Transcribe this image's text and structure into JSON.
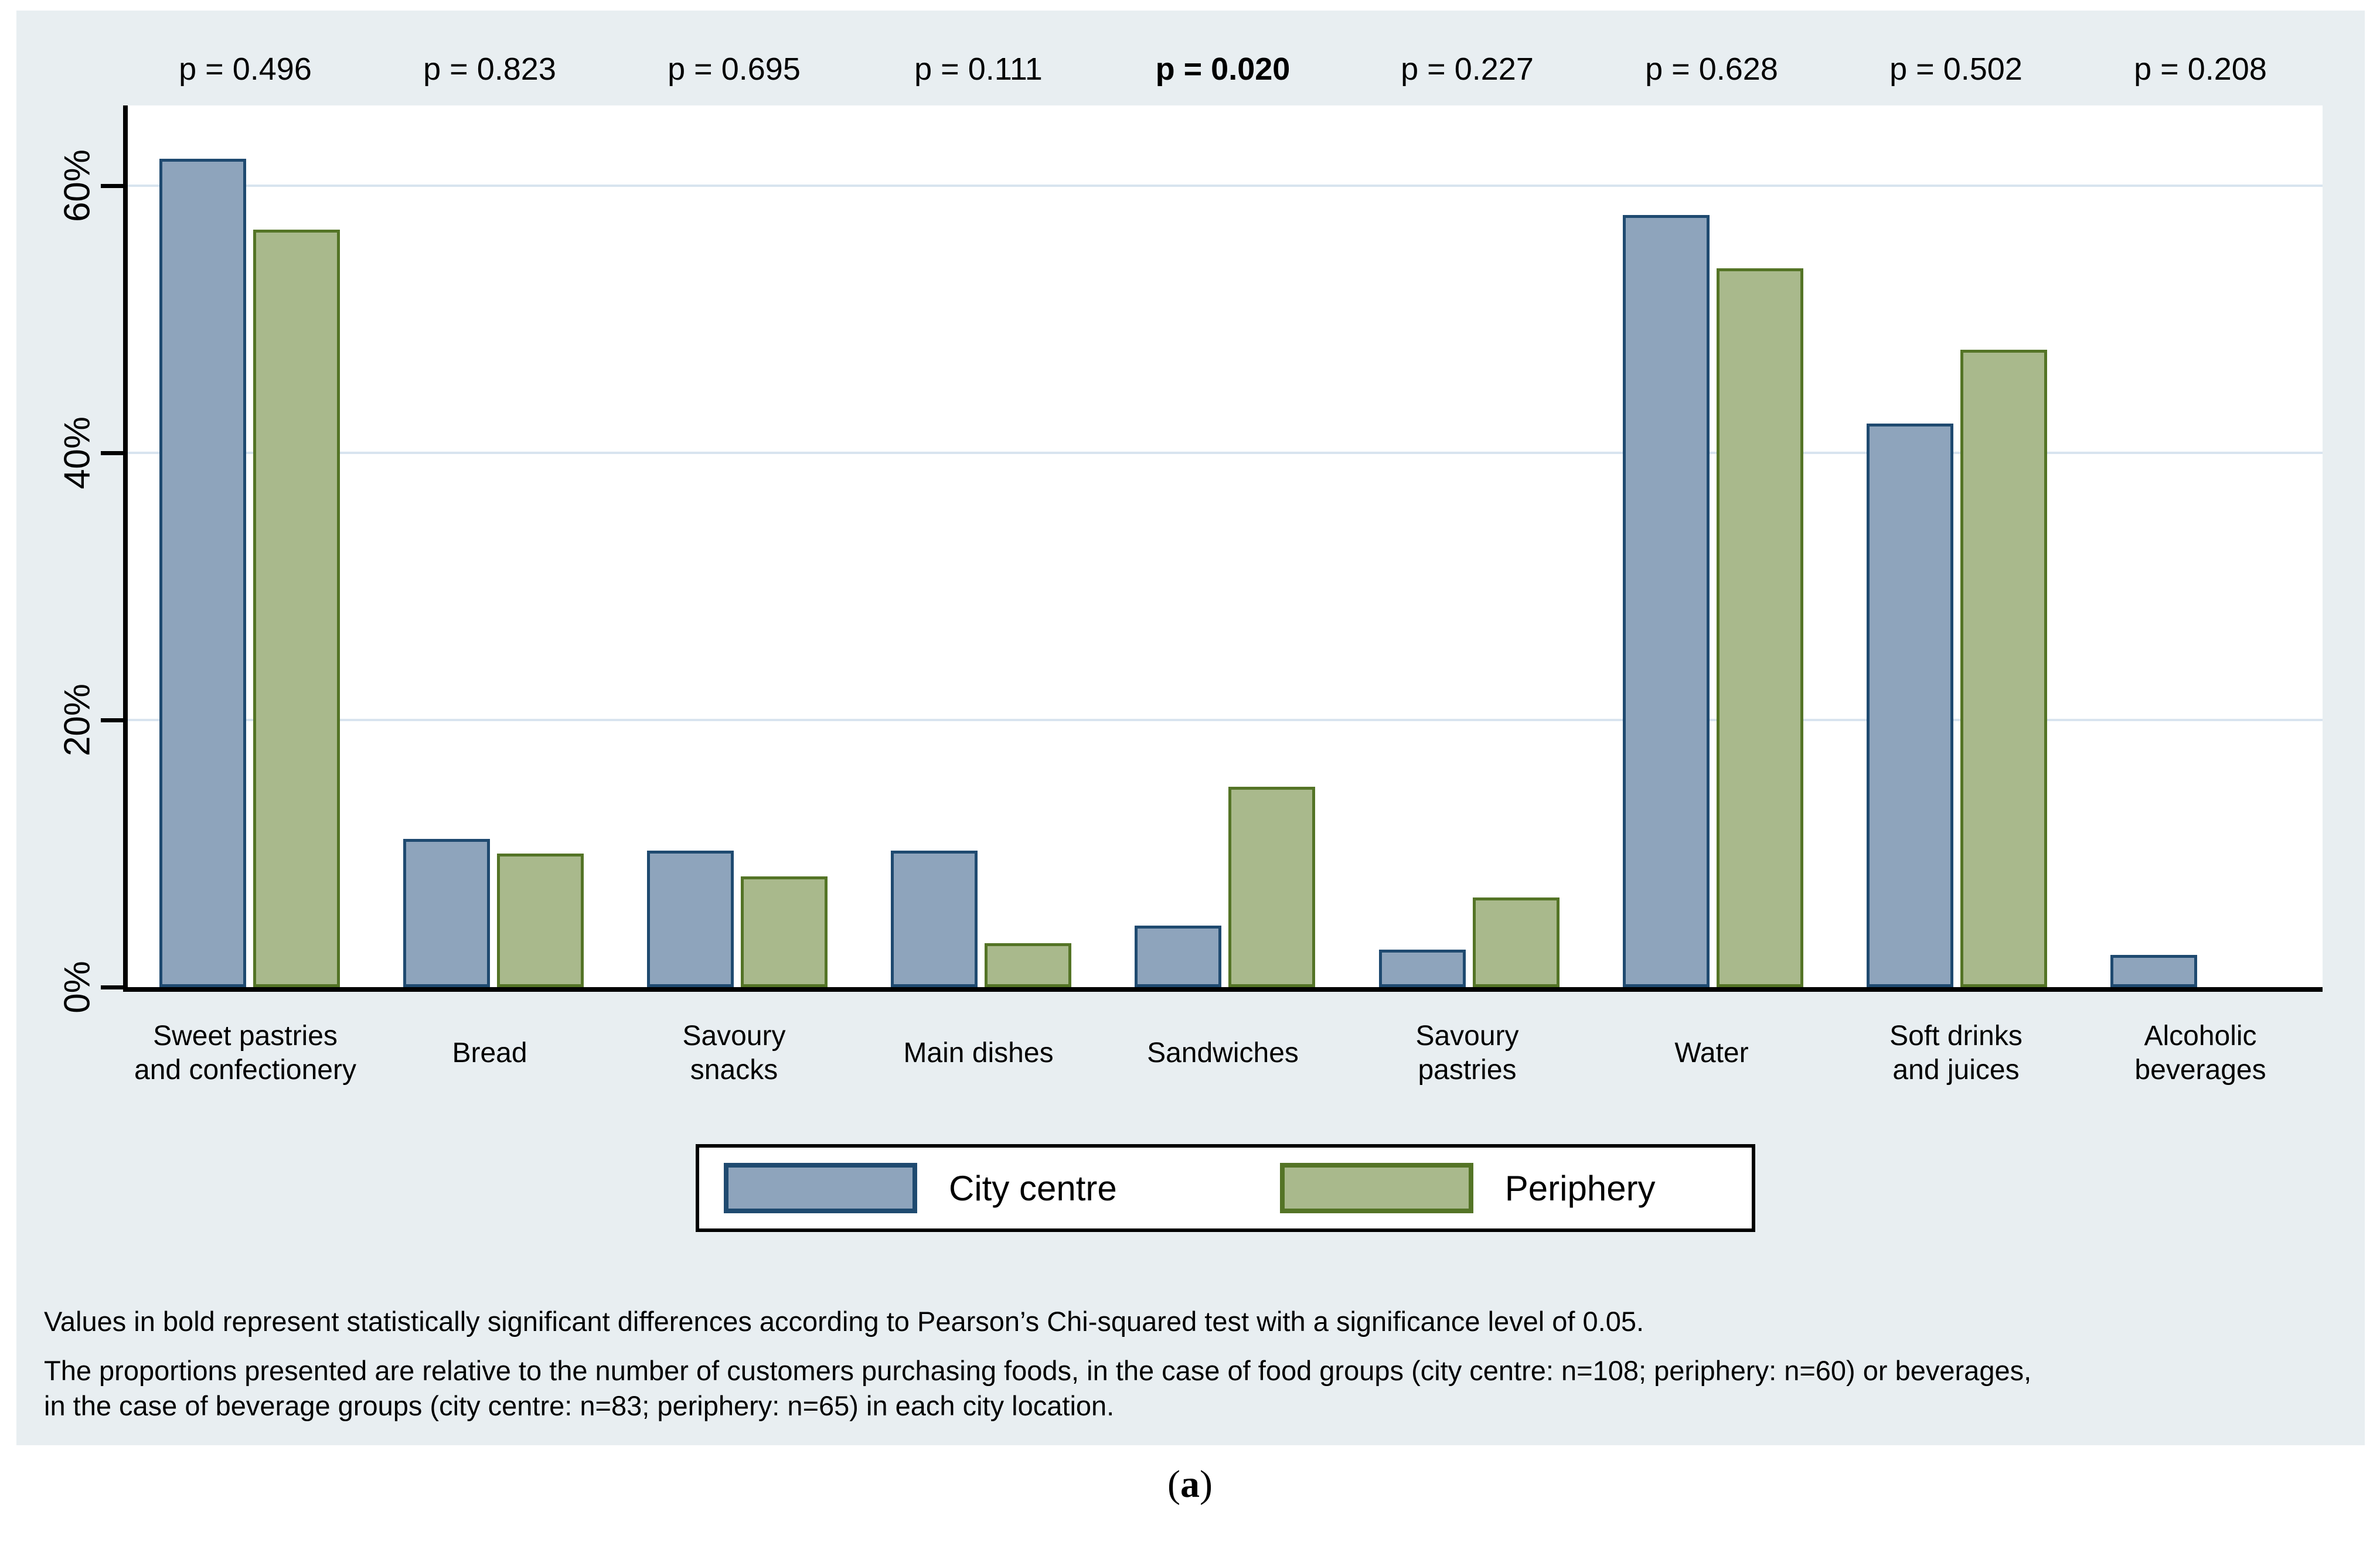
{
  "colors": {
    "panel_bg": "#E8EEF1",
    "plot_bg": "#ffffff",
    "gridline": "#D8E4EF",
    "axis": "#000000",
    "city_centre_fill": "#8EA4BC",
    "city_centre_border": "#1F4A70",
    "periphery_fill": "#A9B98C",
    "periphery_border": "#547426"
  },
  "legend": {
    "items": [
      {
        "label": "City centre",
        "fill": "#8EA4BC",
        "border": "#1F4A70"
      },
      {
        "label": "Periphery",
        "fill": "#A9B98C",
        "border": "#547426"
      }
    ]
  },
  "footnotes": {
    "line1": "Values in bold represent statistically significant differences according to Pearson’s Chi-squared test with a significance level of 0.05.",
    "para2_line1": "The proportions presented are relative to the number of customers purchasing foods, in the case of food groups (city centre: n=108; periphery: n=60) or beverages,",
    "para2_line2": "in the case of beverage groups (city centre: n=83; periphery: n=65) in each city location."
  },
  "caption": {
    "open": "(",
    "letter": "a",
    "close": ")"
  },
  "chart_data": {
    "type": "bar",
    "title": "",
    "xlabel": "",
    "ylabel": "",
    "ylim": [
      0,
      66
    ],
    "grid": "horizontal",
    "legend_position": "bottom",
    "yticks": [
      {
        "label": "0%",
        "value": 0
      },
      {
        "label": "20%",
        "value": 20
      },
      {
        "label": "40%",
        "value": 40
      },
      {
        "label": "60%",
        "value": 60
      }
    ],
    "categories": [
      {
        "lines": [
          "Sweet pastries",
          "and confectionery"
        ]
      },
      {
        "lines": [
          "Bread"
        ]
      },
      {
        "lines": [
          "Savoury",
          "snacks"
        ]
      },
      {
        "lines": [
          "Main dishes"
        ]
      },
      {
        "lines": [
          "Sandwiches"
        ]
      },
      {
        "lines": [
          "Savoury",
          "pastries"
        ]
      },
      {
        "lines": [
          "Water"
        ]
      },
      {
        "lines": [
          "Soft drinks",
          "and juices"
        ]
      },
      {
        "lines": [
          "Alcoholic",
          "beverages"
        ]
      }
    ],
    "p_values": [
      {
        "label": "p = 0.496",
        "bold": false
      },
      {
        "label": "p = 0.823",
        "bold": false
      },
      {
        "label": "p = 0.695",
        "bold": false
      },
      {
        "label": "p = 0.111",
        "bold": false
      },
      {
        "label": "p = 0.020",
        "bold": true
      },
      {
        "label": "p = 0.227",
        "bold": false
      },
      {
        "label": "p = 0.628",
        "bold": false
      },
      {
        "label": "p = 0.502",
        "bold": false
      },
      {
        "label": "p = 0.208",
        "bold": false
      }
    ],
    "series": [
      {
        "name": "City centre",
        "values": [
          62.0,
          11.1,
          10.2,
          10.2,
          4.6,
          2.8,
          57.8,
          42.2,
          2.4
        ]
      },
      {
        "name": "Periphery",
        "values": [
          56.7,
          10.0,
          8.3,
          3.3,
          15.0,
          6.7,
          53.8,
          47.7,
          0
        ]
      }
    ]
  }
}
